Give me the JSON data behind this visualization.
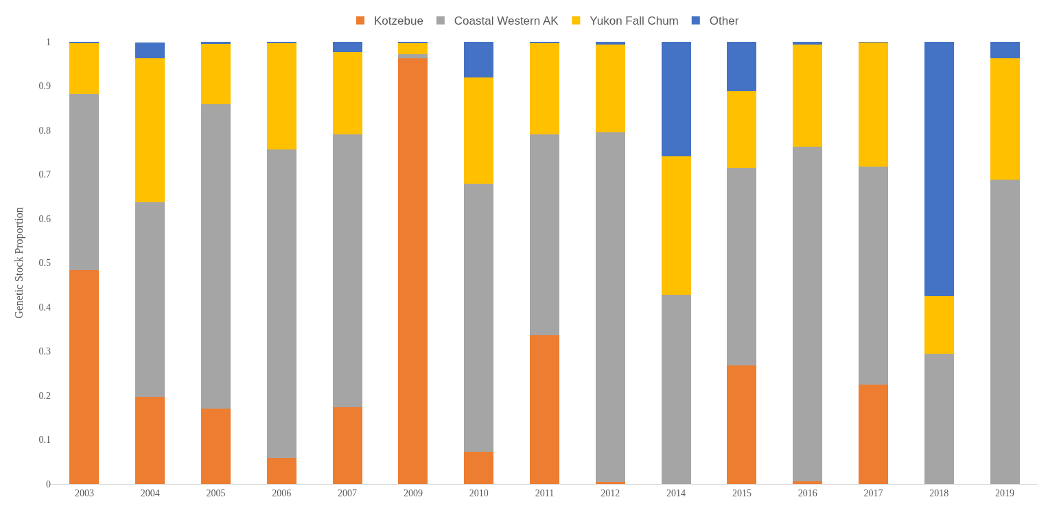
{
  "chart_data": {
    "type": "bar",
    "stacked": true,
    "ylabel": "Genetic Stock Proportion",
    "categories": [
      "2003",
      "2004",
      "2005",
      "2006",
      "2007",
      "2009",
      "2010",
      "2011",
      "2012",
      "2014",
      "2015",
      "2016",
      "2017",
      "2018",
      "2019"
    ],
    "series": [
      {
        "name": "Kotzebue",
        "color": "#ed7d31",
        "values": [
          0.484,
          0.197,
          0.171,
          0.059,
          0.174,
          0.963,
          0.073,
          0.336,
          0.005,
          0,
          0.268,
          0.006,
          0.225,
          0,
          0
        ]
      },
      {
        "name": "Coastal Western AK",
        "color": "#a5a5a5",
        "values": [
          0.398,
          0.44,
          0.688,
          0.698,
          0.617,
          0.009,
          0.606,
          0.455,
          0.79,
          0.428,
          0.447,
          0.757,
          0.493,
          0.295,
          0.688
        ]
      },
      {
        "name": "Yukon Fall Chum",
        "color": "#ffc000",
        "values": [
          0.115,
          0.326,
          0.136,
          0.241,
          0.186,
          0.026,
          0.24,
          0.207,
          0.199,
          0.313,
          0.173,
          0.231,
          0.281,
          0.13,
          0.275
        ]
      },
      {
        "name": "Other",
        "color": "#4472c4",
        "values": [
          0.003,
          0.035,
          0.005,
          0.002,
          0.023,
          0.002,
          0.081,
          0.002,
          0.006,
          0.259,
          0.112,
          0.006,
          0.001,
          0.575,
          0.037
        ]
      }
    ],
    "ylim": [
      0,
      1
    ],
    "yticks": [
      0,
      0.1,
      0.2,
      0.3,
      0.4,
      0.5,
      0.6,
      0.7,
      0.8,
      0.9,
      1
    ],
    "grid": false,
    "legend": "top"
  }
}
